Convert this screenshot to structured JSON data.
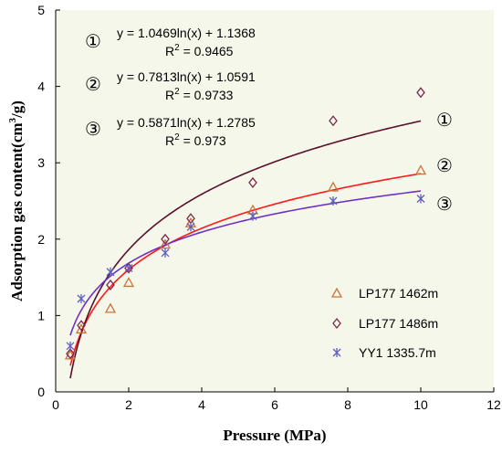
{
  "chart_data": {
    "type": "scatter",
    "xlabel": "Pressure (MPa)",
    "ylabel_main": "Adsorption gas content(cm",
    "ylabel_sup": "3",
    "ylabel_end": "/g)",
    "xlim": [
      0,
      12
    ],
    "ylim": [
      0,
      5
    ],
    "xticks": [
      "0",
      "2",
      "4",
      "6",
      "8",
      "10",
      "12"
    ],
    "yticks": [
      "0",
      "1",
      "2",
      "3",
      "4",
      "5"
    ],
    "grid": false,
    "legend_position": "bottom-right",
    "series": [
      {
        "name": "LP177 1462m",
        "marker": "triangle",
        "color": "#c8743a",
        "points": [
          [
            0.4,
            0.48
          ],
          [
            0.7,
            0.82
          ],
          [
            1.5,
            1.09
          ],
          [
            2.0,
            1.43
          ],
          [
            3.0,
            1.93
          ],
          [
            3.7,
            2.21
          ],
          [
            5.4,
            2.38
          ],
          [
            7.6,
            2.68
          ],
          [
            10.0,
            2.9
          ]
        ],
        "fit": {
          "a": 0.7813,
          "b": 1.0591,
          "color": "#ff1a1a"
        }
      },
      {
        "name": "LP177 1486m",
        "marker": "diamond",
        "color": "#7a2a4a",
        "points": [
          [
            0.4,
            0.5
          ],
          [
            0.7,
            0.87
          ],
          [
            1.5,
            1.4
          ],
          [
            2.0,
            1.62
          ],
          [
            3.0,
            2.0
          ],
          [
            3.7,
            2.27
          ],
          [
            5.4,
            2.74
          ],
          [
            7.6,
            3.55
          ],
          [
            10.0,
            3.92
          ]
        ],
        "fit": {
          "a": 1.0469,
          "b": 1.1368,
          "color": "#5a0f2a"
        }
      },
      {
        "name": "YY1 1335.7m",
        "marker": "asterisk",
        "color": "#6060c0",
        "points": [
          [
            0.4,
            0.6
          ],
          [
            0.7,
            1.22
          ],
          [
            1.5,
            1.57
          ],
          [
            2.0,
            1.62
          ],
          [
            3.0,
            1.82
          ],
          [
            3.7,
            2.16
          ],
          [
            5.4,
            2.3
          ],
          [
            7.6,
            2.5
          ],
          [
            10.0,
            2.53
          ]
        ],
        "fit": {
          "a": 0.5871,
          "b": 1.2785,
          "color": "#7030c8"
        }
      }
    ],
    "annotations": [
      {
        "marker": "①",
        "equation": "y = 1.0469ln(x) + 1.1368",
        "r2_label": "R",
        "r2_sup": "2",
        "r2_value": " = 0.9465"
      },
      {
        "marker": "②",
        "equation": "y = 0.7813ln(x) + 1.0591",
        "r2_label": "R",
        "r2_sup": "2",
        "r2_value": " = 0.9733"
      },
      {
        "marker": "③",
        "equation": "y = 0.5871ln(x) + 1.2785",
        "r2_label": "R",
        "r2_sup": "2",
        "r2_value": " = 0.973"
      }
    ],
    "curve_labels": [
      "①",
      "②",
      "③"
    ]
  },
  "colors": {
    "plot_background": "#f5f7ea",
    "axis": "#000000"
  }
}
